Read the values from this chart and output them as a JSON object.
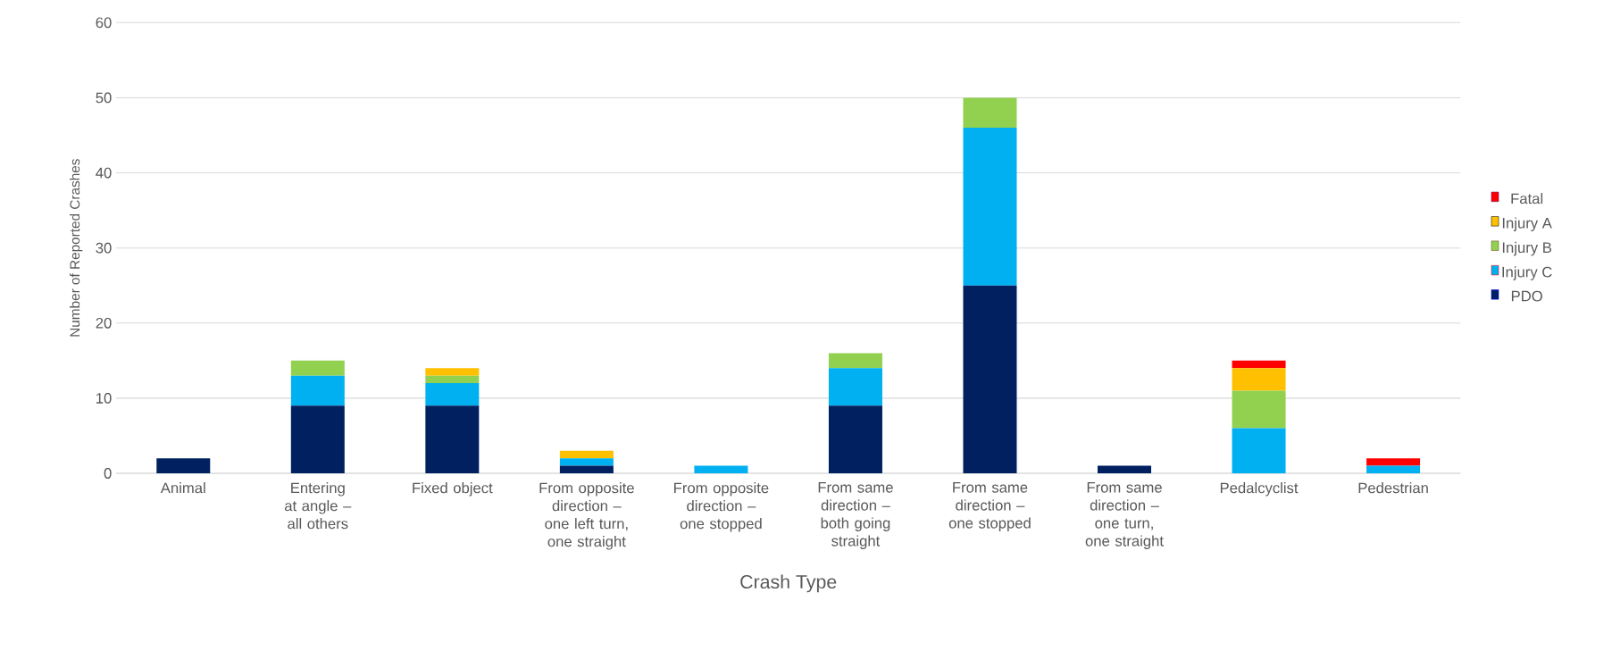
{
  "chart_data": {
    "type": "bar",
    "stacked": true,
    "xlabel": "Crash Type",
    "ylabel": "Number of Reported Crashes",
    "categories": [
      "Animal",
      "Entering at angle – all others",
      "Fixed object",
      "From opposite direction – one left turn, one straight",
      "From opposite direction – one stopped",
      "From same direction – both going straight",
      "From same direction – one stopped",
      "From same direction – one turn, one straight",
      "Pedalcyclist",
      "Pedestrian"
    ],
    "series": [
      {
        "name": "PDO",
        "color": "#002060",
        "values": [
          2,
          9,
          9,
          1,
          null,
          9,
          25,
          1,
          null,
          null
        ]
      },
      {
        "name": "Injury C",
        "color": "#00b0f0",
        "values": [
          null,
          4,
          3,
          1,
          1,
          5,
          21,
          null,
          6,
          1
        ]
      },
      {
        "name": "Injury B",
        "color": "#92d050",
        "values": [
          null,
          2,
          1,
          null,
          null,
          2,
          4,
          null,
          5,
          null
        ]
      },
      {
        "name": "Injury A",
        "color": "#ffc000",
        "values": [
          null,
          null,
          1,
          1,
          null,
          null,
          null,
          null,
          3,
          null
        ]
      },
      {
        "name": "Fatal",
        "color": "#ff0000",
        "values": [
          null,
          null,
          null,
          null,
          null,
          null,
          null,
          null,
          1,
          1
        ]
      }
    ],
    "ylim": [
      0,
      60
    ],
    "yticks": [
      0,
      10,
      20,
      30,
      40,
      50,
      60
    ],
    "grid": "y",
    "legend": "right"
  }
}
